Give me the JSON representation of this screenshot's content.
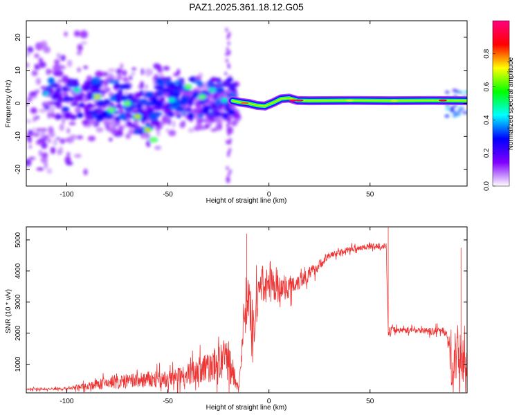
{
  "title": "PAZ1.2025.361.18.12.G05",
  "chart_data": [
    {
      "type": "heatmap",
      "xlabel": "Height of straight line (km)",
      "ylabel": "Frequency (Hz)",
      "xlim": [
        -120,
        98
      ],
      "ylim": [
        -25,
        25
      ],
      "x_ticks": [
        -100,
        -50,
        0,
        50
      ],
      "y_ticks": [
        -20,
        -10,
        0,
        10,
        20
      ],
      "colorbar": {
        "label": "Normalized spectral amplitude",
        "range": [
          0,
          1
        ],
        "ticks": [
          "0.0",
          "0.2",
          "0.4",
          "0.6",
          "0.8"
        ],
        "colors": [
          "#ffffff",
          "#8000ff",
          "#0000ff",
          "#00ffff",
          "#00ff00",
          "#ffff00",
          "#ff0000",
          "#ff0080"
        ]
      },
      "ridge": [
        {
          "x": -18,
          "f": 0.8
        },
        {
          "x": -14,
          "f": 0.3
        },
        {
          "x": -10,
          "f": 0.0
        },
        {
          "x": -6,
          "f": -0.6
        },
        {
          "x": -2,
          "f": -0.8
        },
        {
          "x": 2,
          "f": 0.2
        },
        {
          "x": 6,
          "f": 1.4
        },
        {
          "x": 10,
          "f": 1.6
        },
        {
          "x": 14,
          "f": 0.9
        },
        {
          "x": 20,
          "f": 0.8
        },
        {
          "x": 40,
          "f": 0.9
        },
        {
          "x": 60,
          "f": 0.8
        },
        {
          "x": 80,
          "f": 0.9
        },
        {
          "x": 98,
          "f": 0.8
        }
      ],
      "blobs": [
        {
          "x": -85,
          "f": 2,
          "a": 0.6
        },
        {
          "x": -78,
          "f": -2,
          "a": 0.5
        },
        {
          "x": -70,
          "f": 0,
          "a": 0.5
        },
        {
          "x": -65,
          "f": -4,
          "a": 0.6
        },
        {
          "x": -60,
          "f": -8,
          "a": 0.6
        },
        {
          "x": -57,
          "f": -11,
          "a": 0.5
        },
        {
          "x": -48,
          "f": 1,
          "a": 0.4
        },
        {
          "x": -40,
          "f": 5,
          "a": 0.5
        },
        {
          "x": -33,
          "f": 2,
          "a": 0.5
        },
        {
          "x": -28,
          "f": 4,
          "a": 0.4
        },
        {
          "x": -22,
          "f": 1,
          "a": 0.4
        },
        {
          "x": -110,
          "f": 3,
          "a": 0.3
        },
        {
          "x": -95,
          "f": 4,
          "a": 0.4
        }
      ]
    },
    {
      "type": "line",
      "xlabel": "Height of straight line (km)",
      "ylabel": "SNR (10 * v/v)",
      "xlim": [
        -120,
        98
      ],
      "ylim": [
        80,
        5420
      ],
      "x_ticks": [
        -100,
        -50,
        0,
        50
      ],
      "y_ticks": [
        1000,
        2000,
        3000,
        4000,
        5000
      ],
      "color": "#ee3333",
      "series": [
        {
          "name": "SNR",
          "x": [
            -120,
            -110,
            -100,
            -90,
            -80,
            -70,
            -60,
            -50,
            -40,
            -30,
            -25,
            -20,
            -15,
            -12,
            -10,
            -8,
            -5,
            0,
            5,
            10,
            15,
            20,
            25,
            30,
            35,
            40,
            45,
            50,
            55,
            58,
            59,
            60,
            65,
            70,
            75,
            80,
            85,
            88,
            90,
            95,
            98
          ],
          "y": [
            200,
            200,
            220,
            300,
            400,
            450,
            500,
            500,
            700,
            900,
            1000,
            1200,
            150,
            2800,
            3200,
            1800,
            3500,
            3600,
            3400,
            3500,
            3700,
            3900,
            4200,
            4500,
            4600,
            4700,
            4750,
            4800,
            4800,
            4800,
            2000,
            2100,
            2100,
            2100,
            2100,
            2050,
            2100,
            2000,
            1000,
            1500,
            600
          ],
          "noise": [
            40,
            50,
            60,
            150,
            250,
            300,
            350,
            350,
            450,
            650,
            750,
            900,
            100,
            1100,
            1100,
            1100,
            700,
            650,
            550,
            450,
            400,
            300,
            200,
            150,
            120,
            120,
            120,
            120,
            120,
            120,
            120,
            150,
            120,
            120,
            120,
            150,
            150,
            180,
            900,
            1300,
            900
          ]
        }
      ]
    }
  ]
}
